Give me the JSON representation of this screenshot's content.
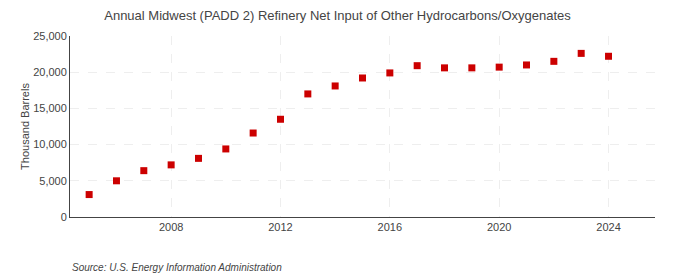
{
  "chart_data": {
    "type": "scatter",
    "title": "Annual Midwest (PADD 2) Refinery Net Input of Other Hydrocarbons/Oxygenates",
    "ylabel": "Thousand Barrels",
    "source": "Source: U.S. Energy Information Administration",
    "x": [
      2005,
      2006,
      2007,
      2008,
      2009,
      2010,
      2011,
      2012,
      2013,
      2014,
      2015,
      2016,
      2017,
      2018,
      2019,
      2020,
      2021,
      2022,
      2023,
      2024
    ],
    "values": [
      3100,
      5000,
      6400,
      7200,
      8100,
      9400,
      11600,
      13500,
      17000,
      18100,
      19200,
      19900,
      20900,
      20600,
      20600,
      20700,
      21000,
      21500,
      22600,
      22200
    ],
    "color": "#cc0000",
    "marker": "square",
    "xlim": [
      2004.3,
      2025.7
    ],
    "xticks": [
      2008,
      2012,
      2016,
      2020,
      2024
    ],
    "ylim": [
      0,
      25000
    ],
    "yticks": [
      0,
      {
        "value": 5000,
        "label": "5,000"
      },
      {
        "value": 10000,
        "label": "10,000"
      },
      {
        "value": 15000,
        "label": "15,000"
      },
      {
        "value": 20000,
        "label": "20,000"
      },
      {
        "value": 25000,
        "label": "25,000"
      }
    ],
    "grid": true
  }
}
